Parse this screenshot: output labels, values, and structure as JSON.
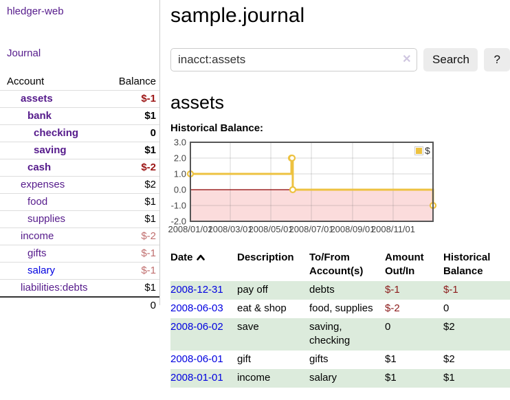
{
  "brand": "hledger-web",
  "nav": {
    "journal": "Journal"
  },
  "sidebar": {
    "header": {
      "account": "Account",
      "balance": "Balance"
    },
    "accounts": [
      {
        "name": "assets",
        "balance": "$-1"
      },
      {
        "name": "bank",
        "balance": "$1"
      },
      {
        "name": "checking",
        "balance": "0"
      },
      {
        "name": "saving",
        "balance": "$1"
      },
      {
        "name": "cash",
        "balance": "$-2"
      },
      {
        "name": "expenses",
        "balance": "$2"
      },
      {
        "name": "food",
        "balance": "$1"
      },
      {
        "name": "supplies",
        "balance": "$1"
      },
      {
        "name": "income",
        "balance": "$-2"
      },
      {
        "name": "gifts",
        "balance": "$-1"
      },
      {
        "name": "salary",
        "balance": "$-1"
      },
      {
        "name": "liabilities:debts",
        "balance": "$1"
      }
    ],
    "total": "0"
  },
  "header": {
    "title": "sample.journal"
  },
  "search": {
    "query": "inacct:assets",
    "clear_icon": "✕",
    "button": "Search",
    "help": "?"
  },
  "account_page": {
    "heading": "assets",
    "chart_label": "Historical Balance:"
  },
  "chart_data": {
    "type": "line",
    "title": "Historical Balance",
    "step": true,
    "series": [
      {
        "name": "$",
        "color": "#edc240",
        "points": [
          [
            "2008-01-01",
            1
          ],
          [
            "2008-06-01",
            2
          ],
          [
            "2008-06-02",
            2
          ],
          [
            "2008-06-03",
            0
          ],
          [
            "2008-12-31",
            -1
          ]
        ]
      }
    ],
    "xlim": [
      "2008-01-01",
      "2008-12-31"
    ],
    "ylim": [
      -2,
      3
    ],
    "xticks": [
      {
        "d": "2008-01-01",
        "label": "2008/01/01"
      },
      {
        "d": "2008-03-01",
        "label": "2008/03/01"
      },
      {
        "d": "2008-05-01",
        "label": "2008/05/01"
      },
      {
        "d": "2008-07-01",
        "label": "2008/07/01"
      },
      {
        "d": "2008-09-01",
        "label": "2008/09/01"
      },
      {
        "d": "2008-11-01",
        "label": "2008/11/01"
      }
    ],
    "yticks": [
      {
        "v": 3,
        "label": "3.0"
      },
      {
        "v": 2,
        "label": "2.0"
      },
      {
        "v": 1,
        "label": "1.0"
      },
      {
        "v": 0,
        "label": "0.0"
      },
      {
        "v": -1,
        "label": "-1.0"
      },
      {
        "v": -2,
        "label": "-2.0"
      }
    ],
    "legend": {
      "label": "$",
      "position": "top-right"
    },
    "grid": true,
    "negative_fill": "#fbdcdc",
    "zero_line_color": "#8b0000"
  },
  "register_table": {
    "columns": {
      "date": "Date",
      "description": "Description",
      "accounts": "To/From Account(s)",
      "amount": "Amount Out/In",
      "balance": "Historical Balance"
    },
    "rows": [
      {
        "date": "2008-12-31",
        "description": "pay off",
        "accounts": "debts",
        "amount": "$-1",
        "balance": "$-1"
      },
      {
        "date": "2008-06-03",
        "description": "eat & shop",
        "accounts": "food, supplies",
        "amount": "$-2",
        "balance": "0"
      },
      {
        "date": "2008-06-02",
        "description": "save",
        "accounts": "saving, checking",
        "amount": "0",
        "balance": "$2"
      },
      {
        "date": "2008-06-01",
        "description": "gift",
        "accounts": "gifts",
        "amount": "$1",
        "balance": "$2"
      },
      {
        "date": "2008-01-01",
        "description": "income",
        "accounts": "salary",
        "amount": "$1",
        "balance": "$1"
      }
    ]
  }
}
